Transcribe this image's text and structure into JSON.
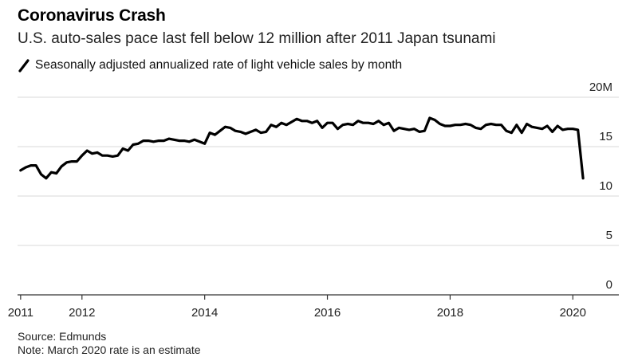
{
  "header": {
    "title": "Coronavirus Crash",
    "subtitle": "U.S. auto-sales pace last fell below 12 million after 2011 Japan tsunami",
    "legend_label": "Seasonally adjusted annualized rate of light vehicle sales by month"
  },
  "footer": {
    "source": "Source: Edmunds",
    "note": "Note: March 2020 rate is an estimate"
  },
  "colors": {
    "line": "#000000",
    "grid": "#d9d9d9",
    "axis": "#333333"
  },
  "chart_data": {
    "type": "line",
    "title": "Coronavirus Crash",
    "subtitle": "U.S. auto-sales pace last fell below 12 million after 2011 Japan tsunami",
    "xlabel": "",
    "ylabel": "",
    "x_start": 2011.0,
    "x_step_months": 1,
    "xlim": [
      2010.95,
      2020.75
    ],
    "ylim": [
      0,
      20
    ],
    "grid": true,
    "legend": "top-left",
    "x_ticks": [
      {
        "value": 2011,
        "label": "2011"
      },
      {
        "value": 2012,
        "label": "2012"
      },
      {
        "value": 2014,
        "label": "2014"
      },
      {
        "value": 2016,
        "label": "2016"
      },
      {
        "value": 2018,
        "label": "2018"
      },
      {
        "value": 2020,
        "label": "2020"
      }
    ],
    "y_ticks": [
      {
        "value": 20,
        "label": "20M"
      },
      {
        "value": 15,
        "label": "15"
      },
      {
        "value": 10,
        "label": "10"
      },
      {
        "value": 5,
        "label": "5"
      },
      {
        "value": 0,
        "label": "0"
      }
    ],
    "series": [
      {
        "name": "Seasonally adjusted annualized rate of light vehicle sales by month",
        "values": [
          12.6,
          12.9,
          13.1,
          13.1,
          12.2,
          11.8,
          12.4,
          12.3,
          13.0,
          13.4,
          13.5,
          13.5,
          14.1,
          14.6,
          14.3,
          14.4,
          14.1,
          14.1,
          14.0,
          14.1,
          14.8,
          14.6,
          15.2,
          15.3,
          15.6,
          15.6,
          15.5,
          15.6,
          15.6,
          15.8,
          15.7,
          15.6,
          15.6,
          15.5,
          15.7,
          15.5,
          15.3,
          16.4,
          16.2,
          16.6,
          17.0,
          16.9,
          16.6,
          16.5,
          16.3,
          16.5,
          16.7,
          16.4,
          16.5,
          17.2,
          17.0,
          17.4,
          17.2,
          17.5,
          17.8,
          17.6,
          17.6,
          17.4,
          17.6,
          16.9,
          17.4,
          17.4,
          16.8,
          17.2,
          17.3,
          17.2,
          17.6,
          17.4,
          17.4,
          17.3,
          17.6,
          17.2,
          17.4,
          16.6,
          16.9,
          16.8,
          16.7,
          16.8,
          16.5,
          16.6,
          17.9,
          17.7,
          17.3,
          17.1,
          17.1,
          17.2,
          17.2,
          17.3,
          17.2,
          16.9,
          16.8,
          17.2,
          17.3,
          17.2,
          17.2,
          16.6,
          16.4,
          17.2,
          16.4,
          17.3,
          17.0,
          16.9,
          16.8,
          17.1,
          16.5,
          17.1,
          16.7,
          16.8,
          16.8,
          16.7,
          11.8
        ]
      }
    ]
  }
}
